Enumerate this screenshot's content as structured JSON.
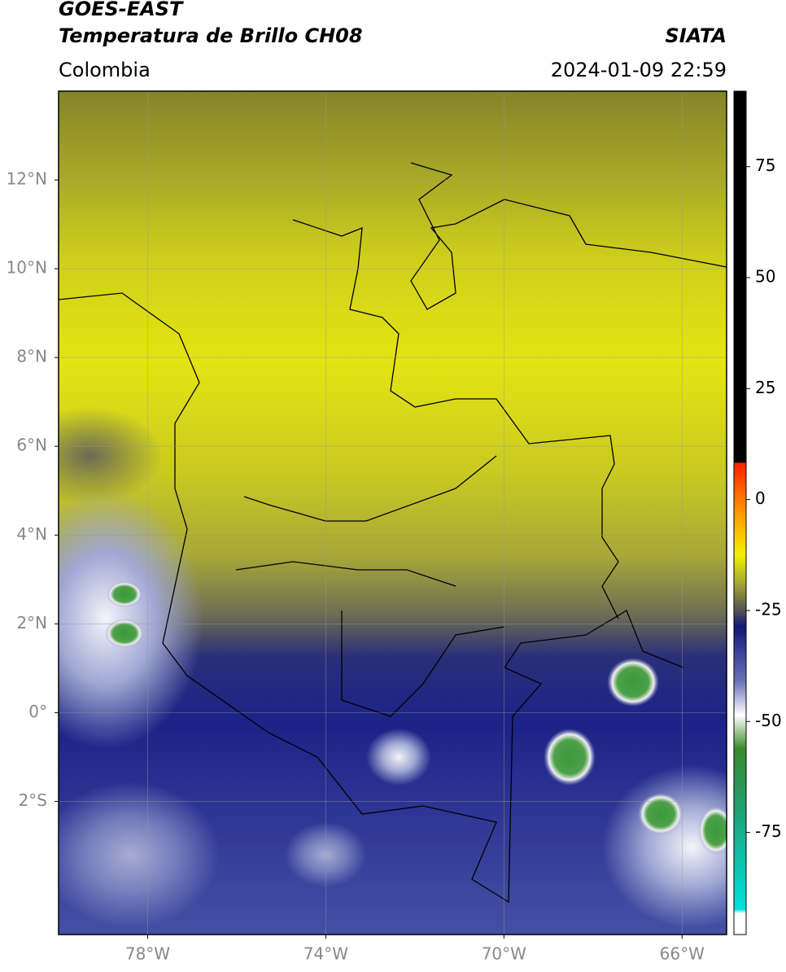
{
  "header": {
    "title_line1": "GOES-EAST",
    "title_line2": "Temperatura de Brillo CH08",
    "source": "SIATA",
    "region": "Colombia",
    "datetime": "2024-01-09 22:59"
  },
  "map": {
    "lonlim": [
      -80,
      -65
    ],
    "latlim": [
      -5,
      14
    ],
    "lon_ticks": [
      {
        "value": -78,
        "label": "78°W"
      },
      {
        "value": -74,
        "label": "74°W"
      },
      {
        "value": -70,
        "label": "70°W"
      },
      {
        "value": -66,
        "label": "66°W"
      }
    ],
    "lat_ticks": [
      {
        "value": 12,
        "label": "12°N"
      },
      {
        "value": 10,
        "label": "10°N"
      },
      {
        "value": 8,
        "label": "8°N"
      },
      {
        "value": 6,
        "label": "6°N"
      },
      {
        "value": 4,
        "label": "4°N"
      },
      {
        "value": 2,
        "label": "2°N"
      },
      {
        "value": 0,
        "label": "0°"
      },
      {
        "value": -2,
        "label": "2°S"
      }
    ],
    "colorbar": {
      "clim": [
        -98,
        92
      ],
      "ticks": [
        75,
        50,
        25,
        0,
        -25,
        -50,
        -75
      ]
    }
  }
}
